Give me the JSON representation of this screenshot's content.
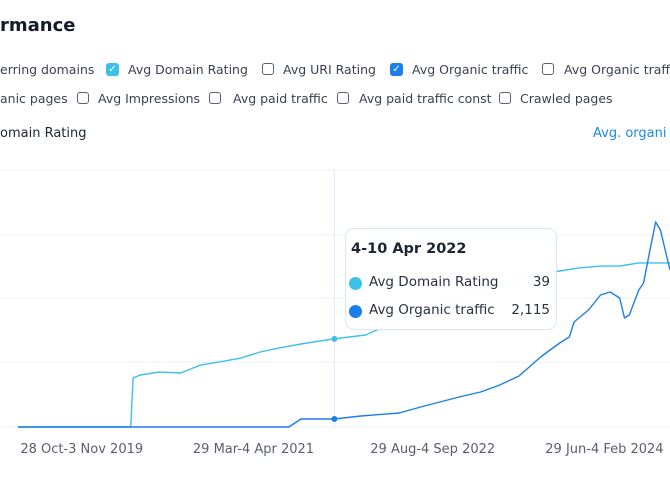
{
  "header": {
    "title": "rmance"
  },
  "options_row1": [
    {
      "label": "erring domains",
      "checkbox": false
    },
    {
      "label": "Avg Domain Rating",
      "checkbox": true,
      "checked": true,
      "color": "#3cc0e8"
    },
    {
      "label": "Avg URI Rating",
      "checkbox": true,
      "checked": false
    },
    {
      "label": "Avg Organic traffic",
      "checkbox": true,
      "checked": true,
      "color": "#1a7fe8"
    },
    {
      "label": "Avg Organic traffi",
      "checkbox": true,
      "checked": false
    }
  ],
  "options_row2": [
    {
      "label": "anic pages",
      "checkbox": false
    },
    {
      "label": "Avg Impressions",
      "checkbox": true,
      "checked": false
    },
    {
      "label": "Avg paid traffic",
      "checkbox": true,
      "checked": false
    },
    {
      "label": "Avg paid traffic const",
      "checkbox": true,
      "checked": false
    },
    {
      "label": "Crawled pages",
      "checkbox": true,
      "checked": false
    }
  ],
  "left_axis_title": "omain Rating",
  "right_axis_title": "Avg. organi",
  "tooltip": {
    "title": "4-10 Apr 2022",
    "rows": [
      {
        "label": "Avg Domain Rating",
        "value": "39",
        "color": "#3cc0e8"
      },
      {
        "label": "Avg Organic traffic",
        "value": "2,115",
        "color": "#1a7fe8"
      }
    ]
  },
  "chart_data": {
    "type": "line",
    "x_unit": "week index",
    "x_ticks": [
      {
        "week": 26,
        "label": "28 Oct-3 Nov 2019"
      },
      {
        "week": 98,
        "label": "29 Mar-4 Apr 2021"
      },
      {
        "week": 172,
        "label": "29 Aug-4 Sep 2022"
      },
      {
        "week": 245,
        "label": "29 Jun-4 Feb 2024"
      }
    ],
    "xlim": [
      0,
      272
    ],
    "hover_week": 132,
    "grid": true,
    "series": [
      {
        "name": "Avg Domain Rating",
        "axis": "left",
        "color": "#3cc0e8",
        "ylim": [
          0,
          113.7
        ],
        "points": [
          [
            0,
            0
          ],
          [
            47,
            0
          ],
          [
            48,
            21.7
          ],
          [
            51,
            23
          ],
          [
            59,
            24.3
          ],
          [
            68,
            23.9
          ],
          [
            76,
            27.4
          ],
          [
            84,
            28.8
          ],
          [
            93,
            30.5
          ],
          [
            101,
            33.2
          ],
          [
            109,
            35
          ],
          [
            118,
            36.7
          ],
          [
            132,
            39
          ],
          [
            145,
            40.7
          ],
          [
            159,
            47.3
          ],
          [
            180,
            56.2
          ],
          [
            201,
            62.8
          ],
          [
            213,
            66.8
          ],
          [
            226,
            69
          ],
          [
            234,
            70.4
          ],
          [
            243,
            71.2
          ],
          [
            251,
            71.2
          ],
          [
            259,
            72.6
          ],
          [
            272,
            72.6
          ]
        ]
      },
      {
        "name": "Avg Organic traffic",
        "axis": "right",
        "color": "#1a7fe8",
        "ylim": [
          0,
          67950
        ],
        "points": [
          [
            0,
            0
          ],
          [
            113,
            0
          ],
          [
            118,
            2115
          ],
          [
            132,
            2115
          ],
          [
            143,
            2908
          ],
          [
            159,
            3701
          ],
          [
            168,
            5288
          ],
          [
            176,
            6610
          ],
          [
            184,
            7932
          ],
          [
            193,
            9254
          ],
          [
            201,
            11105
          ],
          [
            209,
            13484
          ],
          [
            218,
            18508
          ],
          [
            222,
            20359
          ],
          [
            226,
            22210
          ],
          [
            230,
            23796
          ],
          [
            232,
            27762
          ],
          [
            238,
            30935
          ],
          [
            243,
            34901
          ],
          [
            247,
            35694
          ],
          [
            251,
            34108
          ],
          [
            253,
            28820
          ],
          [
            255,
            29613
          ],
          [
            259,
            36223
          ],
          [
            261,
            38074
          ],
          [
            263,
            44684
          ],
          [
            266,
            54202
          ],
          [
            268,
            52087
          ],
          [
            272,
            41511
          ]
        ]
      }
    ]
  }
}
